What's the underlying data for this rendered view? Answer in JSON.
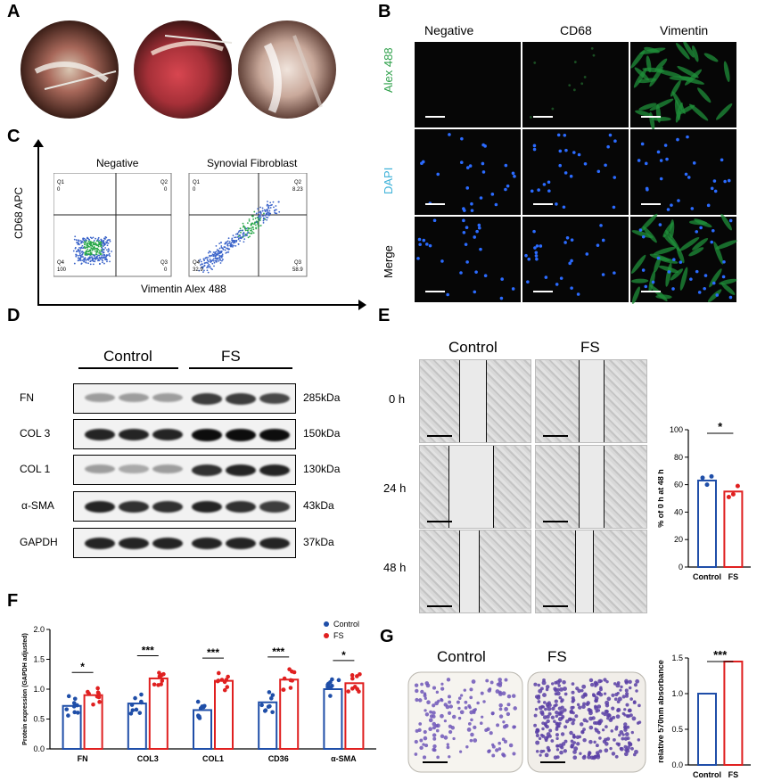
{
  "panels": {
    "A": "A",
    "B": "B",
    "C": "C",
    "D": "D",
    "E": "E",
    "F": "F",
    "G": "G"
  },
  "panelB": {
    "col_headers": [
      "Negative",
      "CD68",
      "Vimentin"
    ],
    "row_labels": [
      "Alex 488",
      "DAPI",
      "Merge"
    ],
    "colors": {
      "alex": "#2ea04a",
      "dapi": "#3ab0d8",
      "nuclei": "#2b6bff",
      "cells": "#1f8f3a"
    }
  },
  "panelC": {
    "plot_titles": [
      "Negative",
      "Synovial Fibroblast"
    ],
    "ylabel": "CD68 APC",
    "xlabel": "Vimentin Alex 488",
    "quadrants": [
      {
        "q1": "Q1",
        "v1": "0",
        "q2": "Q2",
        "v2": "0",
        "q4": "Q4",
        "v4": "100",
        "q3": "Q3",
        "v3": "0"
      },
      {
        "q1": "Q1",
        "v1": "0",
        "q2": "Q2",
        "v2": "8.23",
        "q4": "Q4",
        "v4": "32.9",
        "q3": "Q3",
        "v3": "58.9"
      }
    ]
  },
  "panelD": {
    "groups": [
      "Control",
      "FS"
    ],
    "rows": [
      {
        "label": "FN",
        "kda": "285kDa"
      },
      {
        "label": "COL 3",
        "kda": "150kDa"
      },
      {
        "label": "COL 1",
        "kda": "130kDa"
      },
      {
        "label": "α-SMA",
        "kda": "43kDa"
      },
      {
        "label": "GAPDH",
        "kda": "37kDa"
      }
    ]
  },
  "panelE": {
    "groups": [
      "Control",
      "FS"
    ],
    "times": [
      "0 h",
      "24 h",
      "48 h"
    ]
  },
  "chart_data": [
    {
      "type": "bar",
      "panel": "E",
      "categories": [
        "Control",
        "FS"
      ],
      "values": [
        63,
        55
      ],
      "points": [
        [
          65,
          60,
          66
        ],
        [
          51,
          53,
          59
        ]
      ],
      "ylabel": "% of 0 h at 48 h",
      "ylim": [
        0,
        100
      ],
      "yticks": [
        "0",
        "20",
        "40",
        "60",
        "80",
        "100"
      ],
      "significance": "*",
      "colors": [
        "#1f4ea8",
        "#e02020"
      ]
    },
    {
      "type": "bar",
      "panel": "F",
      "categories": [
        "FN",
        "COL3",
        "COL1",
        "CD36",
        "α-SMA"
      ],
      "series": [
        {
          "name": "Control",
          "values": [
            0.72,
            0.76,
            0.65,
            0.78,
            1.0
          ],
          "color": "#1f4ea8"
        },
        {
          "name": "FS",
          "values": [
            0.9,
            1.18,
            1.14,
            1.16,
            1.1
          ],
          "color": "#e02020"
        }
      ],
      "ylabel": "Protein expression (GAPDH adjusted)",
      "ylim": [
        0,
        2.0
      ],
      "yticks": [
        "0.0",
        "0.5",
        "1.0",
        "1.5",
        "2.0"
      ],
      "significance": [
        "*",
        "***",
        "***",
        "***",
        "*"
      ],
      "legend": "top-right"
    },
    {
      "type": "bar",
      "panel": "G",
      "categories": [
        "Control",
        "FS"
      ],
      "values": [
        1.0,
        1.45
      ],
      "ylabel": "relative 570nm absorbance",
      "ylim": [
        0,
        1.5
      ],
      "yticks": [
        "0.0",
        "0.5",
        "1.0",
        "1.5"
      ],
      "significance": "***",
      "colors": [
        "#1f4ea8",
        "#e02020"
      ]
    }
  ],
  "panelG": {
    "groups": [
      "Control",
      "FS"
    ]
  }
}
